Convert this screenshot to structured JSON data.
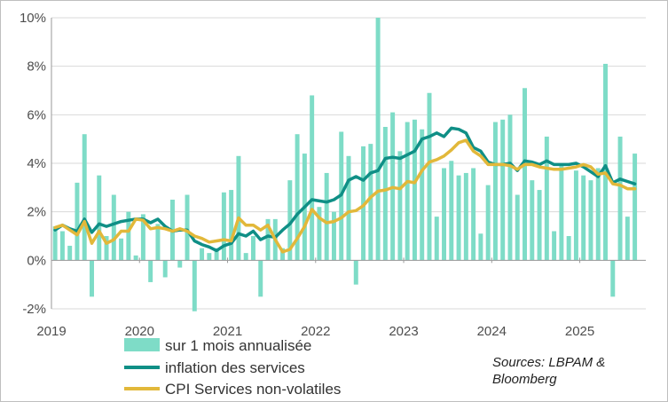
{
  "chart_data": {
    "type": "bar+line",
    "x_labels": [
      "2019",
      "2020",
      "2021",
      "2022",
      "2023",
      "2024",
      "2025"
    ],
    "y_ticks": [
      "-2%",
      "0%",
      "2%",
      "4%",
      "6%",
      "8%",
      "10%"
    ],
    "ylim": [
      -2,
      10
    ],
    "x_range": [
      2019.0,
      2025.75
    ],
    "series": [
      {
        "name": "sur 1 mois annualisée",
        "kind": "bar",
        "color": "#7edcc7",
        "values": [
          1.4,
          1.2,
          0.6,
          3.2,
          5.2,
          -1.5,
          3.5,
          1.0,
          2.7,
          0.9,
          2.0,
          0.2,
          1.9,
          -0.9,
          1.5,
          -0.7,
          2.5,
          -0.3,
          2.7,
          -2.1,
          0.5,
          0.3,
          0.5,
          2.8,
          2.9,
          4.3,
          0.3,
          1.0,
          -1.5,
          1.7,
          1.7,
          0.5,
          3.3,
          5.2,
          4.4,
          6.8,
          2.2,
          3.6,
          2.0,
          5.3,
          4.3,
          -1.0,
          4.7,
          4.8,
          10.0,
          5.5,
          6.1,
          4.5,
          5.7,
          5.8,
          5.4,
          6.9,
          1.8,
          3.8,
          4.1,
          3.5,
          3.6,
          3.8,
          1.1,
          3.1,
          5.7,
          5.8,
          6.0,
          2.7,
          7.1,
          3.3,
          2.9,
          5.1,
          1.2,
          3.9,
          1.0,
          3.7,
          3.5,
          3.3,
          3.8,
          8.1,
          -1.5,
          5.1,
          1.8,
          4.4
        ]
      },
      {
        "name": "inflation des services",
        "kind": "line",
        "color": "#0f8f86",
        "values": [
          1.25,
          1.45,
          1.3,
          1.2,
          1.7,
          1.15,
          1.5,
          1.4,
          1.5,
          1.6,
          1.65,
          1.7,
          1.7,
          1.55,
          1.7,
          1.4,
          1.2,
          1.25,
          1.25,
          0.8,
          0.65,
          0.55,
          0.4,
          0.6,
          0.7,
          1.1,
          1.0,
          1.2,
          0.85,
          1.0,
          0.95,
          1.25,
          1.5,
          1.9,
          2.2,
          2.5,
          2.45,
          2.4,
          2.5,
          2.7,
          3.3,
          3.45,
          3.3,
          3.6,
          3.7,
          4.2,
          4.25,
          4.2,
          4.35,
          4.5,
          5.0,
          5.1,
          5.25,
          5.1,
          5.45,
          5.4,
          5.25,
          4.65,
          4.5,
          4.05,
          3.95,
          3.95,
          4.0,
          3.7,
          4.1,
          4.05,
          3.95,
          4.1,
          3.95,
          3.95,
          3.95,
          4.0,
          3.85,
          3.65,
          3.45,
          3.9,
          3.2,
          3.35,
          3.25,
          3.15
        ]
      },
      {
        "name": "CPI Services non-volatiles",
        "kind": "line",
        "color": "#e2b83a",
        "values": [
          1.35,
          1.45,
          1.25,
          1.05,
          1.6,
          0.7,
          1.2,
          0.7,
          0.85,
          1.2,
          1.2,
          1.7,
          1.65,
          1.3,
          1.35,
          1.3,
          1.2,
          1.3,
          1.2,
          1.0,
          0.9,
          0.75,
          0.8,
          0.85,
          0.8,
          1.75,
          1.45,
          1.45,
          1.25,
          1.45,
          0.85,
          0.35,
          0.45,
          0.9,
          1.4,
          2.1,
          1.75,
          1.55,
          1.6,
          1.75,
          2.0,
          2.05,
          2.25,
          2.6,
          2.85,
          2.9,
          3.0,
          2.95,
          3.25,
          3.2,
          3.7,
          4.05,
          4.15,
          4.3,
          4.55,
          4.85,
          4.95,
          4.5,
          4.3,
          3.95,
          3.95,
          3.95,
          3.9,
          3.75,
          3.95,
          3.95,
          3.85,
          3.8,
          3.75,
          3.75,
          3.8,
          3.85,
          3.95,
          3.85,
          3.55,
          3.6,
          3.15,
          3.1,
          2.95,
          2.95
        ]
      }
    ]
  },
  "legend": {
    "bars_label": "sur 1 mois annualisée",
    "services_label": "inflation des services",
    "cpi_label": "CPI Services non-volatiles"
  },
  "source_line1": "Sources: LBPAM &",
  "source_line2": "Bloomberg"
}
